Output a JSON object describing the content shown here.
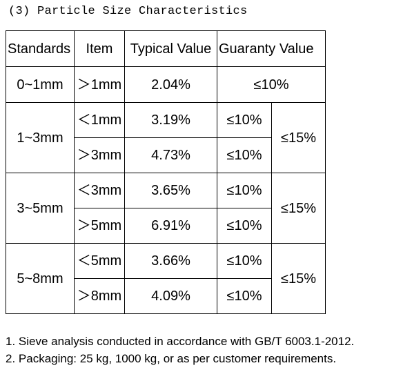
{
  "heading": "(3) Particle Size Characteristics",
  "table": {
    "headers": [
      "Standards",
      "Item",
      "Typical Value",
      "Guaranty Value"
    ],
    "row_single": {
      "standard": "0~1mm",
      "item": "＞1mm",
      "typical": "2.04%",
      "guaranty": "≤10%"
    },
    "groups": [
      {
        "standard": "1~3mm",
        "group_limit": "≤15%",
        "rows": [
          {
            "item": "＜1mm",
            "typical": "3.19%",
            "guaranty": "≤10%"
          },
          {
            "item": "＞3mm",
            "typical": "4.73%",
            "guaranty": "≤10%"
          }
        ]
      },
      {
        "standard": "3~5mm",
        "group_limit": "≤15%",
        "rows": [
          {
            "item": "＜3mm",
            "typical": "3.65%",
            "guaranty": "≤10%"
          },
          {
            "item": "＞5mm",
            "typical": "6.91%",
            "guaranty": "≤10%"
          }
        ]
      },
      {
        "standard": "5~8mm",
        "group_limit": "≤15%",
        "rows": [
          {
            "item": "＜5mm",
            "typical": "3.66%",
            "guaranty": "≤10%"
          },
          {
            "item": "＞8mm",
            "typical": "4.09%",
            "guaranty": "≤10%"
          }
        ]
      }
    ]
  },
  "notes": [
    "1. Sieve analysis conducted in accordance with GB/T 6003.1-2012.",
    "2. Packaging: 25 kg, 1000 kg, or as per customer requirements."
  ]
}
